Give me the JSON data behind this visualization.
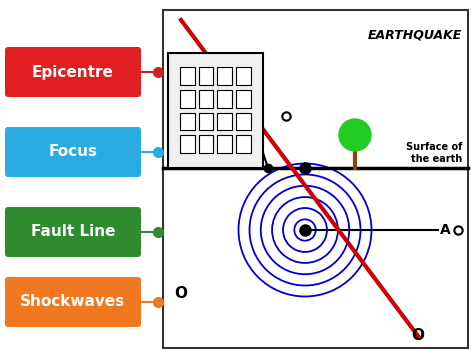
{
  "title": "EARTHQUAKE",
  "background": "#ffffff",
  "labels": [
    {
      "text": "Epicentre",
      "bg": "#e02020",
      "fg": "#ffffff",
      "dot": "#cc2222"
    },
    {
      "text": "Focus",
      "bg": "#29abe2",
      "fg": "#ffffff",
      "dot": "#29abe2"
    },
    {
      "text": "Fault Line",
      "bg": "#2e8b2e",
      "fg": "#ffffff",
      "dot": "#2e8b2e"
    },
    {
      "text": "Shockwaves",
      "bg": "#f07820",
      "fg": "#ffffff",
      "dot": "#f07820"
    }
  ],
  "shockwave_color": "#0000cc",
  "shockwave_radii": [
    0.035,
    0.072,
    0.108,
    0.145,
    0.182,
    0.218
  ],
  "fault_line_color": "#cc0000"
}
